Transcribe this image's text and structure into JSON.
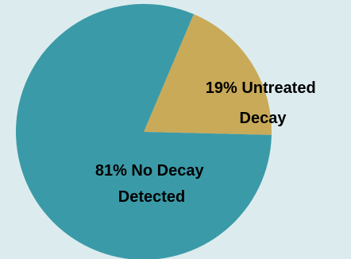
{
  "chart_data": {
    "type": "pie",
    "title": "",
    "slices": [
      {
        "label_lines": [
          "19% Untreated",
          "Decay"
        ],
        "value": 19,
        "color": "#c9aa58"
      },
      {
        "label_lines": [
          "81% No Decay",
          "Detected"
        ],
        "value": 81,
        "color": "#3b9aa8"
      }
    ],
    "background_color": "#dcecee"
  }
}
